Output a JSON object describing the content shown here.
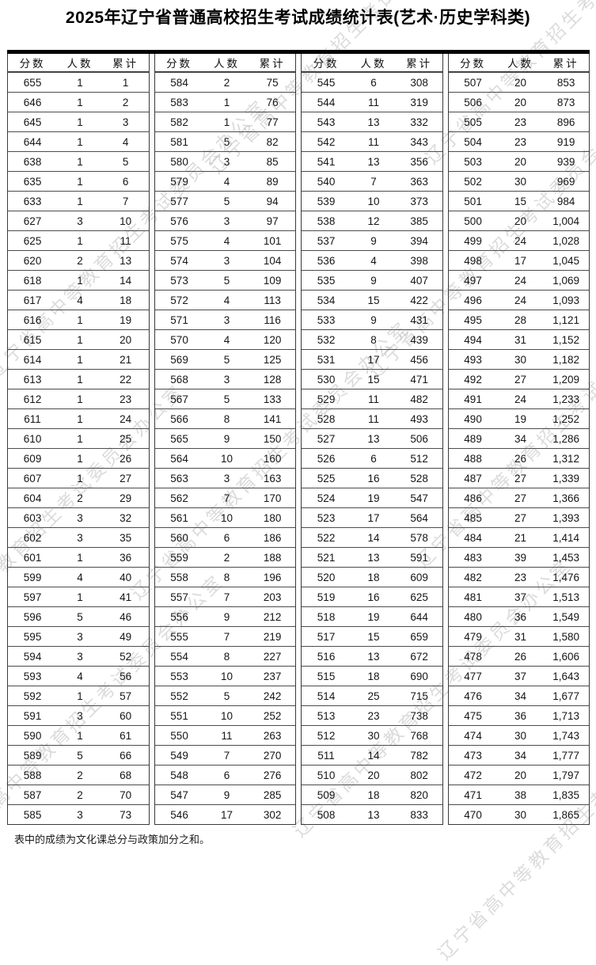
{
  "title": "2025年辽宁省普通高校招生考试成绩统计表(艺术·历史学科类)",
  "watermark": {
    "text": "辽宁省高中等教育招生考试委员会办公室"
  },
  "footnote": "表中的成绩为文化课总分与政策加分之和。",
  "table": {
    "headers": [
      "分数",
      "人数",
      "累计"
    ],
    "groups": [
      {
        "rows": [
          [
            "655",
            "1",
            "1"
          ],
          [
            "646",
            "1",
            "2"
          ],
          [
            "645",
            "1",
            "3"
          ],
          [
            "644",
            "1",
            "4"
          ],
          [
            "638",
            "1",
            "5"
          ],
          [
            "635",
            "1",
            "6"
          ],
          [
            "633",
            "1",
            "7"
          ],
          [
            "627",
            "3",
            "10"
          ],
          [
            "625",
            "1",
            "11"
          ],
          [
            "620",
            "2",
            "13"
          ],
          [
            "618",
            "1",
            "14"
          ],
          [
            "617",
            "4",
            "18"
          ],
          [
            "616",
            "1",
            "19"
          ],
          [
            "615",
            "1",
            "20"
          ],
          [
            "614",
            "1",
            "21"
          ],
          [
            "613",
            "1",
            "22"
          ],
          [
            "612",
            "1",
            "23"
          ],
          [
            "611",
            "1",
            "24"
          ],
          [
            "610",
            "1",
            "25"
          ],
          [
            "609",
            "1",
            "26"
          ],
          [
            "607",
            "1",
            "27"
          ],
          [
            "604",
            "2",
            "29"
          ],
          [
            "603",
            "3",
            "32"
          ],
          [
            "602",
            "3",
            "35"
          ],
          [
            "601",
            "1",
            "36"
          ],
          [
            "599",
            "4",
            "40"
          ],
          [
            "597",
            "1",
            "41"
          ],
          [
            "596",
            "5",
            "46"
          ],
          [
            "595",
            "3",
            "49"
          ],
          [
            "594",
            "3",
            "52"
          ],
          [
            "593",
            "4",
            "56"
          ],
          [
            "592",
            "1",
            "57"
          ],
          [
            "591",
            "3",
            "60"
          ],
          [
            "590",
            "1",
            "61"
          ],
          [
            "589",
            "5",
            "66"
          ],
          [
            "588",
            "2",
            "68"
          ],
          [
            "587",
            "2",
            "70"
          ],
          [
            "585",
            "3",
            "73"
          ]
        ]
      },
      {
        "rows": [
          [
            "584",
            "2",
            "75"
          ],
          [
            "583",
            "1",
            "76"
          ],
          [
            "582",
            "1",
            "77"
          ],
          [
            "581",
            "5",
            "82"
          ],
          [
            "580",
            "3",
            "85"
          ],
          [
            "579",
            "4",
            "89"
          ],
          [
            "577",
            "5",
            "94"
          ],
          [
            "576",
            "3",
            "97"
          ],
          [
            "575",
            "4",
            "101"
          ],
          [
            "574",
            "3",
            "104"
          ],
          [
            "573",
            "5",
            "109"
          ],
          [
            "572",
            "4",
            "113"
          ],
          [
            "571",
            "3",
            "116"
          ],
          [
            "570",
            "4",
            "120"
          ],
          [
            "569",
            "5",
            "125"
          ],
          [
            "568",
            "3",
            "128"
          ],
          [
            "567",
            "5",
            "133"
          ],
          [
            "566",
            "8",
            "141"
          ],
          [
            "565",
            "9",
            "150"
          ],
          [
            "564",
            "10",
            "160"
          ],
          [
            "563",
            "3",
            "163"
          ],
          [
            "562",
            "7",
            "170"
          ],
          [
            "561",
            "10",
            "180"
          ],
          [
            "560",
            "6",
            "186"
          ],
          [
            "559",
            "2",
            "188"
          ],
          [
            "558",
            "8",
            "196"
          ],
          [
            "557",
            "7",
            "203"
          ],
          [
            "556",
            "9",
            "212"
          ],
          [
            "555",
            "7",
            "219"
          ],
          [
            "554",
            "8",
            "227"
          ],
          [
            "553",
            "10",
            "237"
          ],
          [
            "552",
            "5",
            "242"
          ],
          [
            "551",
            "10",
            "252"
          ],
          [
            "550",
            "11",
            "263"
          ],
          [
            "549",
            "7",
            "270"
          ],
          [
            "548",
            "6",
            "276"
          ],
          [
            "547",
            "9",
            "285"
          ],
          [
            "546",
            "17",
            "302"
          ]
        ]
      },
      {
        "rows": [
          [
            "545",
            "6",
            "308"
          ],
          [
            "544",
            "11",
            "319"
          ],
          [
            "543",
            "13",
            "332"
          ],
          [
            "542",
            "11",
            "343"
          ],
          [
            "541",
            "13",
            "356"
          ],
          [
            "540",
            "7",
            "363"
          ],
          [
            "539",
            "10",
            "373"
          ],
          [
            "538",
            "12",
            "385"
          ],
          [
            "537",
            "9",
            "394"
          ],
          [
            "536",
            "4",
            "398"
          ],
          [
            "535",
            "9",
            "407"
          ],
          [
            "534",
            "15",
            "422"
          ],
          [
            "533",
            "9",
            "431"
          ],
          [
            "532",
            "8",
            "439"
          ],
          [
            "531",
            "17",
            "456"
          ],
          [
            "530",
            "15",
            "471"
          ],
          [
            "529",
            "11",
            "482"
          ],
          [
            "528",
            "11",
            "493"
          ],
          [
            "527",
            "13",
            "506"
          ],
          [
            "526",
            "6",
            "512"
          ],
          [
            "525",
            "16",
            "528"
          ],
          [
            "524",
            "19",
            "547"
          ],
          [
            "523",
            "17",
            "564"
          ],
          [
            "522",
            "14",
            "578"
          ],
          [
            "521",
            "13",
            "591"
          ],
          [
            "520",
            "18",
            "609"
          ],
          [
            "519",
            "16",
            "625"
          ],
          [
            "518",
            "19",
            "644"
          ],
          [
            "517",
            "15",
            "659"
          ],
          [
            "516",
            "13",
            "672"
          ],
          [
            "515",
            "18",
            "690"
          ],
          [
            "514",
            "25",
            "715"
          ],
          [
            "513",
            "23",
            "738"
          ],
          [
            "512",
            "30",
            "768"
          ],
          [
            "511",
            "14",
            "782"
          ],
          [
            "510",
            "20",
            "802"
          ],
          [
            "509",
            "18",
            "820"
          ],
          [
            "508",
            "13",
            "833"
          ]
        ]
      },
      {
        "rows": [
          [
            "507",
            "20",
            "853"
          ],
          [
            "506",
            "20",
            "873"
          ],
          [
            "505",
            "23",
            "896"
          ],
          [
            "504",
            "23",
            "919"
          ],
          [
            "503",
            "20",
            "939"
          ],
          [
            "502",
            "30",
            "969"
          ],
          [
            "501",
            "15",
            "984"
          ],
          [
            "500",
            "20",
            "1,004"
          ],
          [
            "499",
            "24",
            "1,028"
          ],
          [
            "498",
            "17",
            "1,045"
          ],
          [
            "497",
            "24",
            "1,069"
          ],
          [
            "496",
            "24",
            "1,093"
          ],
          [
            "495",
            "28",
            "1,121"
          ],
          [
            "494",
            "31",
            "1,152"
          ],
          [
            "493",
            "30",
            "1,182"
          ],
          [
            "492",
            "27",
            "1,209"
          ],
          [
            "491",
            "24",
            "1,233"
          ],
          [
            "490",
            "19",
            "1,252"
          ],
          [
            "489",
            "34",
            "1,286"
          ],
          [
            "488",
            "26",
            "1,312"
          ],
          [
            "487",
            "27",
            "1,339"
          ],
          [
            "486",
            "27",
            "1,366"
          ],
          [
            "485",
            "27",
            "1,393"
          ],
          [
            "484",
            "21",
            "1,414"
          ],
          [
            "483",
            "39",
            "1,453"
          ],
          [
            "482",
            "23",
            "1,476"
          ],
          [
            "481",
            "37",
            "1,513"
          ],
          [
            "480",
            "36",
            "1,549"
          ],
          [
            "479",
            "31",
            "1,580"
          ],
          [
            "478",
            "26",
            "1,606"
          ],
          [
            "477",
            "37",
            "1,643"
          ],
          [
            "476",
            "34",
            "1,677"
          ],
          [
            "475",
            "36",
            "1,713"
          ],
          [
            "474",
            "30",
            "1,743"
          ],
          [
            "473",
            "34",
            "1,777"
          ],
          [
            "472",
            "20",
            "1,797"
          ],
          [
            "471",
            "38",
            "1,835"
          ],
          [
            "470",
            "30",
            "1,865"
          ]
        ]
      }
    ]
  }
}
